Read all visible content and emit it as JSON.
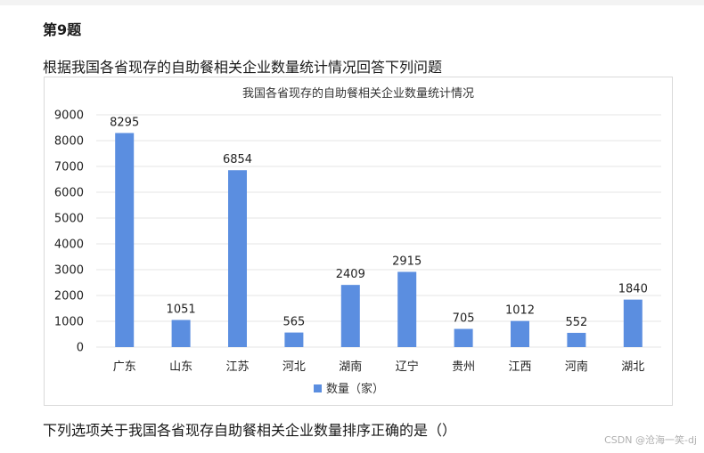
{
  "question": {
    "number_label": "第9题",
    "prompt": "根据我国各省现存的自助餐相关企业数量统计情况回答下列问题",
    "question_text": "下列选项关于我国各省现存自助餐相关企业数量排序正确的是（）"
  },
  "watermark": "CSDN @沧海一笑-dj",
  "chart_data": {
    "type": "bar",
    "title": "我国各省现存的自助餐相关企业数量统计情况",
    "categories": [
      "广东",
      "山东",
      "江苏",
      "河北",
      "湖南",
      "辽宁",
      "贵州",
      "江西",
      "河南",
      "湖北"
    ],
    "series": [
      {
        "name": "数量（家）",
        "values": [
          8295,
          1051,
          6854,
          565,
          2409,
          2915,
          705,
          1012,
          552,
          1840
        ],
        "color": "#5b8ee0"
      }
    ],
    "yticks": [
      "0",
      "1000",
      "2000",
      "3000",
      "4000",
      "5000",
      "6000",
      "7000",
      "8000",
      "9000"
    ],
    "ylim": [
      0,
      9000
    ],
    "grid": true,
    "legend_position": "bottom-center"
  }
}
